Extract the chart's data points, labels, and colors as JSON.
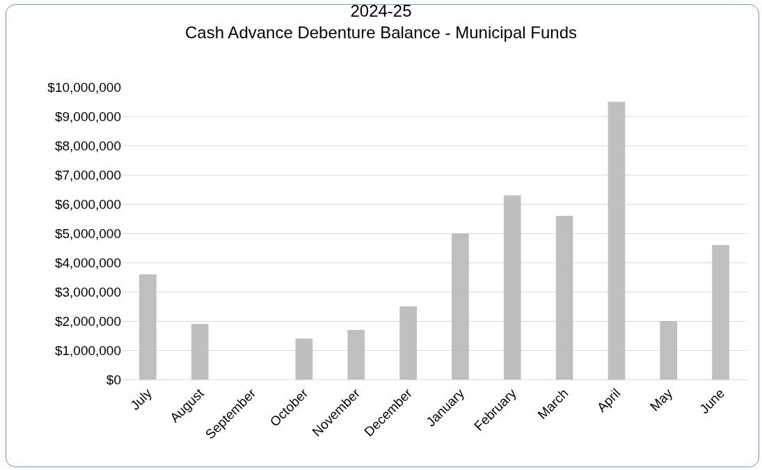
{
  "chart_data": {
    "type": "bar",
    "title": "2024-25\nCash Advance Debenture Balance - Municipal Funds",
    "categories": [
      "July",
      "August",
      "September",
      "October",
      "November",
      "December",
      "January",
      "February",
      "March",
      "April",
      "May",
      "June"
    ],
    "values": [
      3600000,
      1900000,
      0,
      1400000,
      1700000,
      2500000,
      5000000,
      6300000,
      5600000,
      9500000,
      2000000,
      4600000
    ],
    "color": "#bfbfbf",
    "ylim": [
      0,
      10000000
    ],
    "yticks": [
      {
        "value": 0,
        "label": "$0"
      },
      {
        "value": 1000000,
        "label": "$1,000,000"
      },
      {
        "value": 2000000,
        "label": "$2,000,000"
      },
      {
        "value": 3000000,
        "label": "$3,000,000"
      },
      {
        "value": 4000000,
        "label": "$4,000,000"
      },
      {
        "value": 5000000,
        "label": "$5,000,000"
      },
      {
        "value": 6000000,
        "label": "$6,000,000"
      },
      {
        "value": 7000000,
        "label": "$7,000,000"
      },
      {
        "value": 8000000,
        "label": "$8,000,000"
      },
      {
        "value": 9000000,
        "label": "$9,000,000"
      },
      {
        "value": 10000000,
        "label": "$10,000,000"
      }
    ],
    "grid": "y"
  }
}
